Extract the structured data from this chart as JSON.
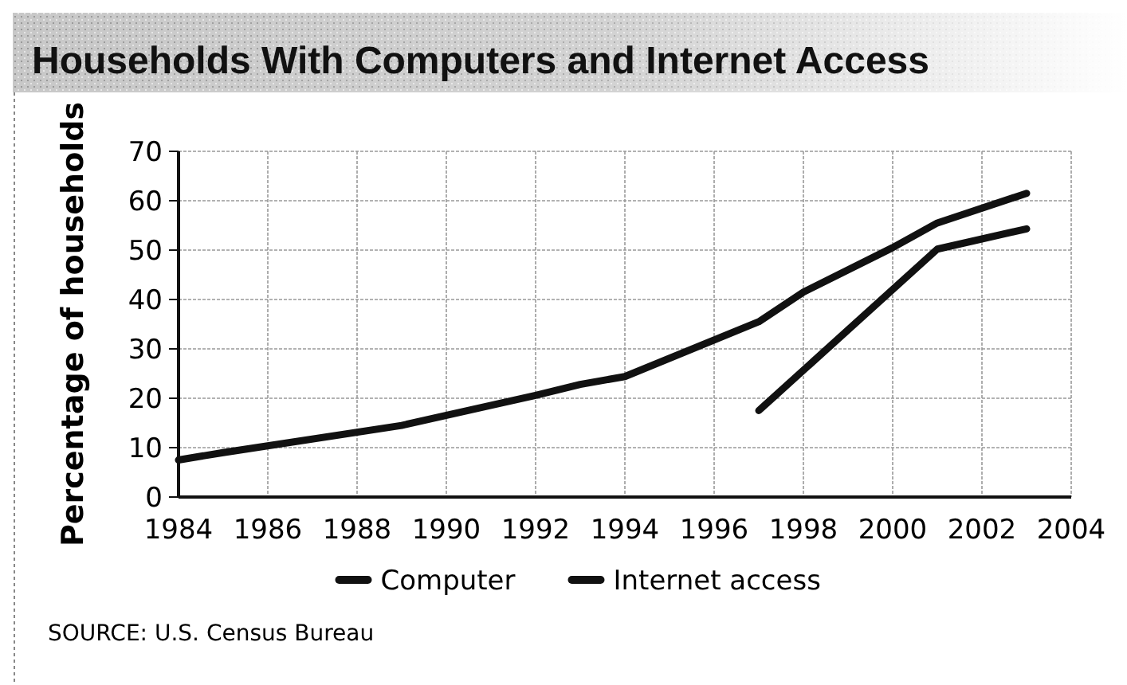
{
  "chart_data": {
    "type": "line",
    "title": "Households With Computers and Internet Access",
    "ylabel": "Percentage of households",
    "annotations": [
      "SOURCE: U.S. Census Bureau"
    ],
    "xlim": [
      1984,
      2004
    ],
    "xticks": [
      1984,
      1986,
      1988,
      1990,
      1992,
      1994,
      1996,
      1998,
      2000,
      2002,
      2004
    ],
    "ylim": [
      0,
      70
    ],
    "yticks": [
      0,
      10,
      20,
      30,
      40,
      50,
      60,
      70
    ],
    "grid": true,
    "legend": "bottom",
    "marker": "none",
    "line_style": "solid",
    "series": [
      {
        "name": "Computer",
        "color": "#111111",
        "x": [
          1984,
          1985,
          1989,
          1992,
          1993,
          1994,
          1997,
          1998,
          2000,
          2001,
          2003
        ],
        "values": [
          7.5,
          9,
          14.5,
          20.6,
          22.8,
          24.4,
          35.5,
          41.5,
          50.5,
          55.5,
          61.5
        ]
      },
      {
        "name": "Internet access",
        "color": "#111111",
        "x": [
          1997,
          2001,
          2003
        ],
        "values": [
          17.5,
          50.2,
          54.3
        ]
      }
    ]
  }
}
